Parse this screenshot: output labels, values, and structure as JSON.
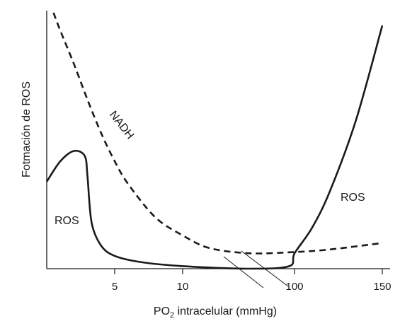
{
  "chart_data": {
    "type": "line",
    "title": "",
    "xlabel": {
      "main": "PO",
      "sub": "2",
      "rest": " intracelular (mmHg)"
    },
    "ylabel": "Fotmación de ROS",
    "x_scale": "broken (two linear segments: 0–15 and 100–150)",
    "x_ticks": [
      "5",
      "10",
      "100",
      "150"
    ],
    "y_ticks": [],
    "grid": false,
    "legend": "none",
    "annotations": [
      {
        "text": "NADH",
        "target": "dashed-curve"
      },
      {
        "text": "ROS",
        "target": "solid-curve-left"
      },
      {
        "text": "ROS",
        "target": "solid-curve-right"
      }
    ],
    "series": [
      {
        "style": "dashed",
        "points": [
          {
            "x": 0.5,
            "y": 1.0
          },
          {
            "x": 1.0,
            "y": 0.93
          },
          {
            "x": 2.0,
            "y": 0.8
          },
          {
            "x": 3.0,
            "y": 0.66
          },
          {
            "x": 4.0,
            "y": 0.53
          },
          {
            "x": 5.0,
            "y": 0.42
          },
          {
            "x": 6.0,
            "y": 0.33
          },
          {
            "x": 8.0,
            "y": 0.2
          },
          {
            "x": 10.0,
            "y": 0.13
          },
          {
            "x": 12.0,
            "y": 0.08
          },
          {
            "x": 15.0,
            "y": 0.06
          },
          {
            "x": 100,
            "y": 0.065
          },
          {
            "x": 120,
            "y": 0.075
          },
          {
            "x": 150,
            "y": 0.1
          }
        ]
      },
      {
        "style": "solid",
        "points": [
          {
            "x": 0.0,
            "y": 0.34
          },
          {
            "x": 1.0,
            "y": 0.42
          },
          {
            "x": 2.0,
            "y": 0.46
          },
          {
            "x": 2.8,
            "y": 0.44
          },
          {
            "x": 3.0,
            "y": 0.36
          },
          {
            "x": 3.3,
            "y": 0.18
          },
          {
            "x": 4.0,
            "y": 0.09
          },
          {
            "x": 5.0,
            "y": 0.05
          },
          {
            "x": 7.0,
            "y": 0.025
          },
          {
            "x": 10.0,
            "y": 0.01
          },
          {
            "x": 15.0,
            "y": 0.0
          },
          {
            "x": 90,
            "y": 0.01
          },
          {
            "x": 100,
            "y": 0.06
          },
          {
            "x": 110,
            "y": 0.16
          },
          {
            "x": 120,
            "y": 0.3
          },
          {
            "x": 135,
            "y": 0.58
          },
          {
            "x": 150,
            "y": 0.95
          }
        ]
      }
    ]
  }
}
